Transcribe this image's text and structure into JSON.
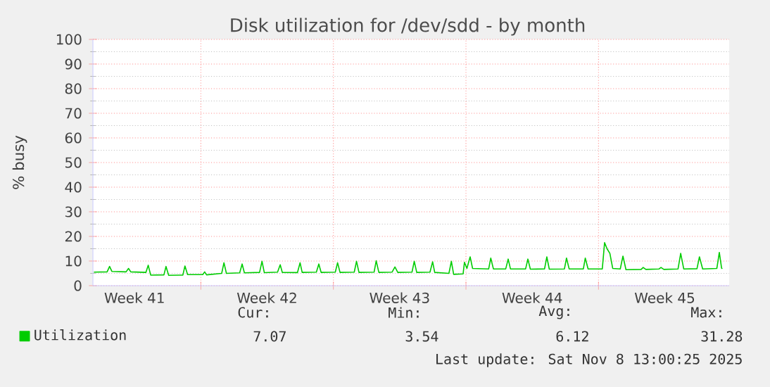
{
  "chart_data": {
    "type": "line",
    "title": "Disk utilization for /dev/sdd - by month",
    "ylabel": "% busy",
    "xlim": [
      "2025-10-06T07:12",
      "2025-11-08T21:36"
    ],
    "ylim": [
      0,
      100
    ],
    "xticks": [
      {
        "value": "2025-10-08T12:00",
        "label": "Week 41"
      },
      {
        "value": "2025-10-12T00:00",
        "label": null
      },
      {
        "value": "2025-10-15T12:00",
        "label": "Week 42"
      },
      {
        "value": "2025-10-19T00:00",
        "label": null
      },
      {
        "value": "2025-10-22T12:00",
        "label": "Week 43"
      },
      {
        "value": "2025-10-26T00:00",
        "label": null
      },
      {
        "value": "2025-10-29T12:00",
        "label": "Week 44"
      },
      {
        "value": "2025-11-02T00:00",
        "label": null
      },
      {
        "value": "2025-11-05T12:00",
        "label": "Week 45"
      }
    ],
    "yticks": [
      0,
      10,
      20,
      30,
      40,
      50,
      60,
      70,
      80,
      90,
      100
    ],
    "grid": true,
    "legend": "bottom",
    "marker": "none",
    "line_style": "solid",
    "series": [
      {
        "name": "Utilization",
        "color": "#00cc00",
        "x": [
          "2025-10-06T08:24",
          "2025-10-07T01:12",
          "2025-10-07T04:19",
          "2025-10-07T07:12",
          "2025-10-08T01:12",
          "2025-10-08T04:19",
          "2025-10-08T07:12",
          "2025-10-09T02:24",
          "2025-10-09T05:17",
          "2025-10-09T08:24",
          "2025-10-10T01:12",
          "2025-10-10T03:50",
          "2025-10-10T07:12",
          "2025-10-11T01:12",
          "2025-10-11T03:50",
          "2025-10-11T07:12",
          "2025-10-12T02:24",
          "2025-10-12T04:48",
          "2025-10-12T07:12",
          "2025-10-13T02:24",
          "2025-10-13T05:17",
          "2025-10-13T08:24",
          "2025-10-14T01:12",
          "2025-10-14T04:19",
          "2025-10-14T07:12",
          "2025-10-15T02:24",
          "2025-10-15T05:31",
          "2025-10-15T08:24",
          "2025-10-16T01:12",
          "2025-10-16T04:34",
          "2025-10-16T07:12",
          "2025-10-17T02:24",
          "2025-10-17T05:46",
          "2025-10-17T08:24",
          "2025-10-18T02:24",
          "2025-10-18T05:31",
          "2025-10-18T08:24",
          "2025-10-19T02:24",
          "2025-10-19T05:17",
          "2025-10-19T08:24",
          "2025-10-20T02:24",
          "2025-10-20T05:17",
          "2025-10-20T08:24",
          "2025-10-21T03:36",
          "2025-10-21T06:14",
          "2025-10-21T09:36",
          "2025-10-22T02:24",
          "2025-10-22T06:00",
          "2025-10-22T09:36",
          "2025-10-23T03:36",
          "2025-10-23T06:29",
          "2025-10-23T09:36",
          "2025-10-24T02:24",
          "2025-10-24T05:46",
          "2025-10-24T08:24",
          "2025-10-25T02:24",
          "2025-10-25T05:31",
          "2025-10-25T08:24",
          "2025-10-25T20:24",
          "2025-10-25T22:05",
          "2025-10-26T01:12",
          "2025-10-26T05:17",
          "2025-10-26T08:24",
          "2025-10-27T04:48",
          "2025-10-27T07:26",
          "2025-10-27T10:48",
          "2025-10-28T02:24",
          "2025-10-28T05:31",
          "2025-10-28T08:24",
          "2025-10-29T03:36",
          "2025-10-29T06:29",
          "2025-10-29T09:36",
          "2025-10-30T03:36",
          "2025-10-30T06:29",
          "2025-10-30T09:36",
          "2025-10-31T04:48",
          "2025-10-31T07:26",
          "2025-10-31T10:48",
          "2025-11-01T04:48",
          "2025-11-01T07:12",
          "2025-11-01T10:48",
          "2025-11-02T04:48",
          "2025-11-02T07:41",
          "2025-11-02T10:48",
          "2025-11-02T14:24",
          "2025-11-02T18:00",
          "2025-11-03T03:36",
          "2025-11-03T06:58",
          "2025-11-03T10:48",
          "2025-11-04T06:00",
          "2025-11-04T08:38",
          "2025-11-04T12:00",
          "2025-11-05T04:48",
          "2025-11-05T07:12",
          "2025-11-05T10:48",
          "2025-11-06T04:48",
          "2025-11-06T08:10",
          "2025-11-06T12:00",
          "2025-11-07T04:48",
          "2025-11-07T07:55",
          "2025-11-07T12:00",
          "2025-11-08T06:00",
          "2025-11-08T09:07",
          "2025-11-08T12:00",
          "2025-11-08T13:00"
        ],
        "values": [
          5.5,
          5.6,
          7.8,
          5.8,
          5.6,
          7.0,
          5.6,
          5.4,
          8.3,
          4.3,
          4.4,
          7.8,
          4.2,
          4.3,
          8.0,
          4.5,
          4.5,
          5.6,
          4.4,
          5.0,
          9.3,
          5.0,
          5.2,
          8.8,
          5.2,
          5.4,
          9.9,
          5.3,
          5.5,
          8.5,
          5.4,
          5.3,
          9.3,
          5.4,
          5.5,
          8.8,
          5.4,
          5.5,
          9.3,
          5.4,
          5.5,
          9.9,
          5.4,
          5.5,
          10.1,
          5.4,
          5.5,
          7.6,
          5.4,
          5.5,
          9.9,
          5.4,
          5.5,
          9.7,
          5.4,
          5.0,
          9.9,
          4.6,
          4.8,
          9.5,
          7.0,
          11.7,
          7.0,
          6.8,
          11.2,
          6.8,
          6.8,
          10.8,
          6.8,
          6.8,
          10.8,
          6.7,
          6.8,
          11.7,
          6.7,
          6.8,
          11.2,
          6.8,
          6.8,
          11.2,
          6.8,
          6.8,
          17.5,
          15.0,
          13.1,
          7.0,
          6.8,
          12.0,
          6.5,
          6.6,
          7.4,
          6.6,
          6.8,
          7.4,
          6.6,
          6.8,
          13.1,
          6.8,
          6.9,
          11.7,
          6.8,
          7.0,
          13.5,
          7.1,
          6.9
        ]
      }
    ],
    "annotations": [
      "Cur:",
      "Min:",
      "Avg:",
      "Max:",
      "7.07",
      "3.54",
      "6.12",
      "31.28",
      "Last update: Sat Nov  8 13:00:25 2025"
    ]
  }
}
